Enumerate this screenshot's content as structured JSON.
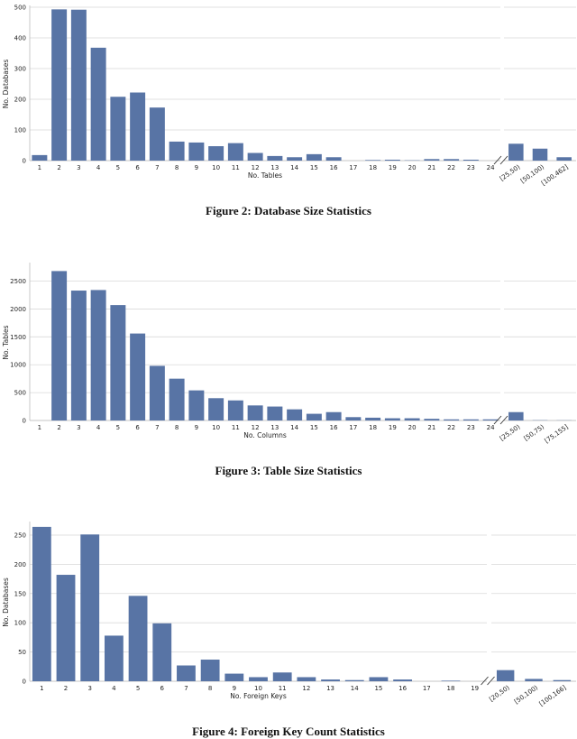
{
  "figures": [
    {
      "caption": "Figure 2: Database Size Statistics",
      "chart_data": {
        "type": "bar",
        "xlabel": "No. Tables",
        "ylabel": "No. Databases",
        "ylim": [
          0,
          500
        ],
        "yticks": [
          "0",
          "100",
          "200",
          "300",
          "400",
          "500"
        ],
        "grid": true,
        "color": "#5874a5",
        "categories": [
          "1",
          "2",
          "3",
          "4",
          "5",
          "6",
          "7",
          "8",
          "9",
          "10",
          "11",
          "12",
          "13",
          "14",
          "15",
          "16",
          "17",
          "18",
          "19",
          "20",
          "21",
          "22",
          "23",
          "24"
        ],
        "values": [
          18,
          493,
          492,
          368,
          208,
          222,
          173,
          62,
          59,
          47,
          57,
          25,
          15,
          11,
          21,
          11,
          0,
          2,
          3,
          1,
          5,
          5,
          3,
          0
        ],
        "break_categories": [
          "[25,50)",
          "[50,100)",
          "[100,462]"
        ],
        "break_values": [
          55,
          39,
          11
        ]
      }
    },
    {
      "caption": "Figure 3: Table Size Statistics",
      "chart_data": {
        "type": "bar",
        "xlabel": "No. Columns",
        "ylabel": "No. Tables",
        "ylim": [
          0,
          2800
        ],
        "yticks": [
          "0",
          "500",
          "1000",
          "1500",
          "2000",
          "2500"
        ],
        "grid": true,
        "color": "#5874a5",
        "categories": [
          "1",
          "2",
          "3",
          "4",
          "5",
          "6",
          "7",
          "8",
          "9",
          "10",
          "11",
          "12",
          "13",
          "14",
          "15",
          "16",
          "17",
          "18",
          "19",
          "20",
          "21",
          "22",
          "23",
          "24"
        ],
        "values": [
          0,
          2680,
          2330,
          2340,
          2070,
          1560,
          980,
          750,
          540,
          400,
          360,
          270,
          250,
          200,
          120,
          150,
          60,
          50,
          40,
          40,
          30,
          20,
          20,
          20
        ],
        "break_categories": [
          "[25,50)",
          "[50,75)",
          "[75,155]"
        ],
        "break_values": [
          150,
          5,
          3
        ]
      }
    },
    {
      "caption": "Figure 4: Foreign Key Count Statistics",
      "chart_data": {
        "type": "bar",
        "xlabel": "No. Foreign Keys",
        "ylabel": "No. Databases",
        "ylim": [
          0,
          270
        ],
        "yticks": [
          "0",
          "50",
          "100",
          "150",
          "200",
          "250"
        ],
        "grid": true,
        "color": "#5874a5",
        "categories": [
          "1",
          "2",
          "3",
          "4",
          "5",
          "6",
          "7",
          "8",
          "9",
          "10",
          "11",
          "12",
          "13",
          "14",
          "15",
          "16",
          "17",
          "18",
          "19"
        ],
        "values": [
          264,
          182,
          251,
          78,
          146,
          99,
          27,
          37,
          13,
          7,
          15,
          7,
          3,
          2,
          7,
          3,
          0,
          1,
          0
        ],
        "break_categories": [
          "[20,50)",
          "[50,100)",
          "[100,166]"
        ],
        "break_values": [
          19,
          4,
          2
        ]
      }
    }
  ]
}
